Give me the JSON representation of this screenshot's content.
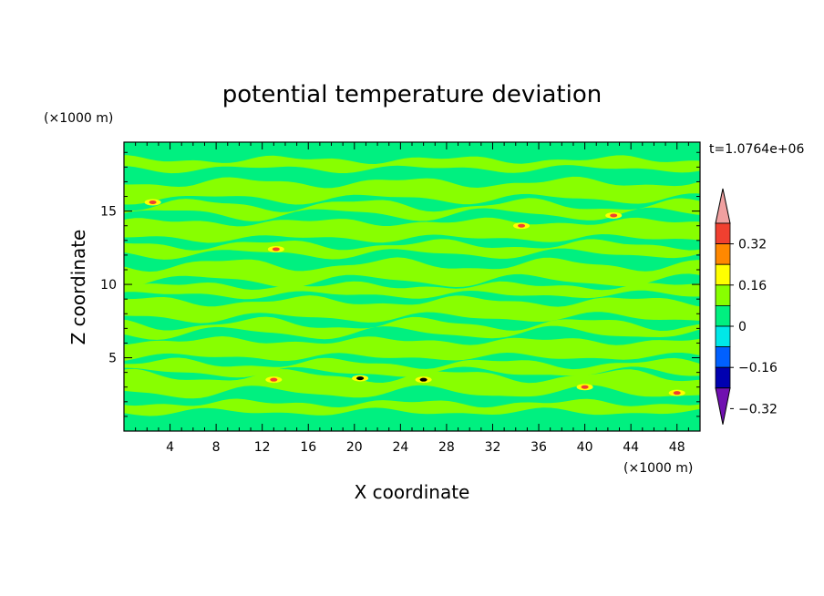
{
  "chart_data": {
    "type": "heatmap",
    "title": "potential temperature deviation",
    "xlabel": "X coordinate",
    "ylabel": "Z coordinate",
    "x_units": "(×1000 m)",
    "y_units": "(×1000 m)",
    "time_label": "t=1.0764e+06",
    "xlim": [
      0,
      50
    ],
    "ylim": [
      0,
      19.7
    ],
    "x_ticks": [
      4,
      8,
      12,
      16,
      20,
      24,
      28,
      32,
      36,
      40,
      44,
      48
    ],
    "x_tick_labels": [
      "4",
      "8",
      "12",
      "16",
      "20",
      "24",
      "28",
      "32",
      "36",
      "40",
      "44",
      "48"
    ],
    "y_ticks": [
      5,
      10,
      15
    ],
    "y_tick_labels": [
      "5",
      "10",
      "15"
    ],
    "colorbar": {
      "levels": [
        -0.4,
        -0.32,
        -0.24,
        -0.16,
        -0.08,
        0,
        0.08,
        0.16,
        0.24,
        0.32,
        0.4
      ],
      "tick_values": [
        0.32,
        0.16,
        0,
        -0.16,
        -0.32
      ],
      "tick_labels": [
        "0.32",
        "0.16",
        "0",
        "−0.16",
        "−0.32"
      ],
      "colors_top_to_bottom": [
        "#f04030",
        "#ff8800",
        "#ffff00",
        "#88ff00",
        "#00f080",
        "#00e8e8",
        "#0060ff",
        "#0000b0"
      ],
      "over_color": "#f0a0a0",
      "under_color": "#7010b0"
    },
    "field_base_color": "#00f080",
    "positive_band_color": "#88ff00",
    "band_centers_z": [
      18.2,
      16.4,
      15.1,
      13.7,
      12.4,
      10.8,
      9.6,
      8.3,
      7.0,
      5.6,
      4.3,
      3.2,
      1.6
    ],
    "hotspots": [
      {
        "x": 2.5,
        "z": 15.6,
        "value": 0.16
      },
      {
        "x": 13.2,
        "z": 12.4,
        "value": 0.16
      },
      {
        "x": 13.0,
        "z": 3.5,
        "value": 0.16
      },
      {
        "x": 20.5,
        "z": 3.6,
        "value": 0.32
      },
      {
        "x": 26.0,
        "z": 3.5,
        "value": 0.32
      },
      {
        "x": 34.5,
        "z": 14.0,
        "value": 0.16
      },
      {
        "x": 40.0,
        "z": 3.0,
        "value": 0.16
      },
      {
        "x": 42.5,
        "z": 14.7,
        "value": 0.16
      },
      {
        "x": 48.0,
        "z": 2.6,
        "value": 0.16
      }
    ]
  }
}
